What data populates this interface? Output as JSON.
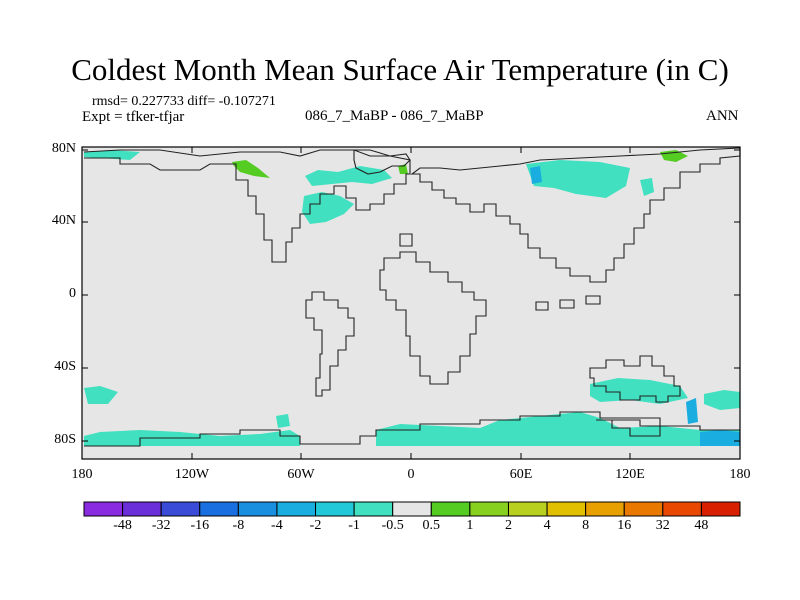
{
  "map": {
    "title": "Coldest Month Mean Surface Air Temperature (in C)",
    "stats": "rmsd= 0.227733 diff= -0.107271",
    "expt": "Expt = tfker-tfjar",
    "subtitle": "086_7_MaBP - 086_7_MaBP",
    "season": "ANN",
    "lat_ticks": [
      "80N",
      "40N",
      "0",
      "40S",
      "80S"
    ],
    "lon_ticks": [
      "180",
      "120W",
      "60W",
      "0",
      "60E",
      "120E",
      "180"
    ],
    "background_color": "#e6e6e6",
    "anomaly_colors": {
      "minus_1_to_minus_0_5": "#40e0c0",
      "minus_2_to_minus_1": "#20c8d8",
      "minus_4_to_minus_2": "#1aa8e0",
      "0_5_to_1": "#55cc22",
      "1_to_2": "#88d020"
    }
  },
  "colorbar": {
    "labels": [
      "-48",
      "-32",
      "-16",
      "-8",
      "-4",
      "-2",
      "-1",
      "-0.5",
      "0.5",
      "1",
      "2",
      "4",
      "8",
      "16",
      "32",
      "48"
    ],
    "colors": [
      "#8a2be2",
      "#6a2fd8",
      "#3a4bd8",
      "#1a6fe0",
      "#1a8fe0",
      "#1aaee0",
      "#20c8d8",
      "#40e0c0",
      "#e6e6e6",
      "#55cc22",
      "#88d020",
      "#b8d020",
      "#e0c000",
      "#e8a000",
      "#e87800",
      "#e84800",
      "#d82000"
    ]
  }
}
